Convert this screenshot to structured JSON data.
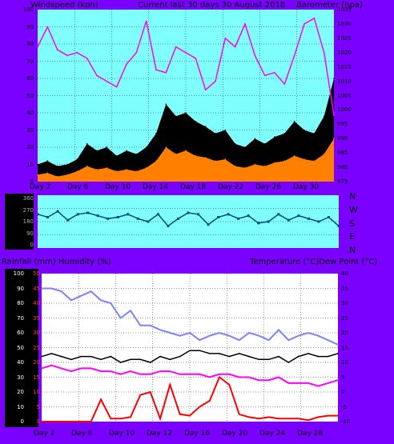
{
  "top": {
    "left_title": "Windspeed (kph)",
    "center_title": "Current last 30 days 30 August 2018",
    "right_title": "Barometer (hpa)",
    "left_ticks": [
      "100",
      "90",
      "80",
      "70",
      "60",
      "50",
      "40",
      "30",
      "20",
      "10",
      "0"
    ],
    "right_ticks": [
      "1035",
      "1030",
      "1025",
      "1020",
      "1015",
      "1010",
      "1005",
      "1000",
      "995",
      "990",
      "985",
      "980",
      "975"
    ],
    "x_ticks": [
      "Day 2",
      "Day 6",
      "Day 10",
      "Day 14",
      "Day 18",
      "Day 22",
      "Day 26",
      "Day 30"
    ]
  },
  "middle": {
    "left_ticks": [
      "360",
      "270",
      "180",
      "90",
      "0"
    ],
    "directions": [
      "N",
      "W",
      "S",
      "E",
      "N"
    ]
  },
  "bottom": {
    "left_title": "Rainfall (mm)  Humidity (%)",
    "right_title": "Temperature (°C)Dew Point (°C)",
    "left_ticks": [
      "100",
      "90",
      "80",
      "70",
      "60",
      "50",
      "40",
      "30",
      "20",
      "10",
      "0"
    ],
    "inner_ticks": [
      "50",
      "45",
      "40",
      "35",
      "30",
      "25",
      "20",
      "15",
      "10",
      "5",
      "0"
    ],
    "right_ticks": [
      "40",
      "35",
      "30",
      "25",
      "20",
      "15",
      "10",
      "5",
      "0",
      "-5",
      "-10"
    ],
    "x_ticks": [
      "Day 2",
      "Day 6",
      "Day 10",
      "Day 12",
      "Day 16",
      "Day 20",
      "Day 24",
      "Day 28"
    ]
  },
  "colors": {
    "frame": "#7a00ff",
    "top_plot_bg": "#80ffff",
    "bottom_plot_bg": "#ffffff",
    "gust": "#000000",
    "wind": "#ff8000",
    "barometer": "#ff00ff",
    "wind_dir": "#004a7f",
    "temperature": "#000000",
    "dewpoint": "#ff00ff",
    "humidity": "#8080ff",
    "rainfall": "#ff0000"
  },
  "chart_data": [
    {
      "type": "area",
      "title": "Current last 30 days 30 August 2018",
      "ylabel": "Windspeed (kph)",
      "y2label": "Barometer (hpa)",
      "ylim": [
        0,
        100
      ],
      "y2lim": [
        975,
        1035
      ],
      "x": [
        1,
        2,
        3,
        4,
        5,
        6,
        7,
        8,
        9,
        10,
        11,
        12,
        13,
        14,
        15,
        16,
        17,
        18,
        19,
        20,
        21,
        22,
        23,
        24,
        25,
        26,
        27,
        28,
        29,
        30,
        31
      ],
      "series": [
        {
          "values": [
            10,
            12,
            9,
            10,
            13,
            22,
            18,
            20,
            15,
            18,
            16,
            20,
            28,
            45,
            38,
            40,
            35,
            32,
            28,
            30,
            22,
            20,
            25,
            22,
            26,
            28,
            35,
            30,
            28,
            38,
            60
          ]
        },
        {
          "values": [
            4,
            5,
            3,
            4,
            6,
            9,
            7,
            8,
            6,
            7,
            6,
            8,
            12,
            20,
            16,
            18,
            15,
            14,
            12,
            13,
            9,
            8,
            10,
            9,
            11,
            12,
            15,
            13,
            12,
            16,
            25
          ]
        },
        {
          "values": [
            1022,
            1029,
            1021,
            1019,
            1020,
            1018,
            1012,
            1010,
            1008,
            1016,
            1020,
            1031,
            1014,
            1013,
            1022,
            1020,
            1018,
            1007,
            1010,
            1025,
            1022,
            1030,
            1019,
            1012,
            1013,
            1009,
            1019,
            1030,
            1032,
            1020,
            998
          ]
        }
      ]
    },
    {
      "type": "scatter",
      "x": [
        1,
        2,
        3,
        4,
        5,
        6,
        7,
        8,
        9,
        10,
        11,
        12,
        13,
        14,
        15,
        16,
        17,
        18,
        19,
        20,
        21,
        22,
        23,
        24,
        25,
        26,
        27,
        28,
        29,
        30,
        31
      ],
      "ylim": [
        0,
        360
      ],
      "series": [
        {
          "values": [
            230,
            210,
            250,
            190,
            230,
            240,
            220,
            200,
            210,
            230,
            200,
            180,
            230,
            150,
            200,
            240,
            230,
            160,
            210,
            230,
            200,
            220,
            170,
            180,
            230,
            190,
            220,
            200,
            180,
            210,
            150
          ]
        }
      ]
    },
    {
      "type": "line",
      "ylabel": "Rainfall (mm)  Humidity (%)",
      "y2label": "Temperature (°C)Dew Point (°C)",
      "ylim": [
        0,
        100
      ],
      "y2lim": [
        -10,
        40
      ],
      "x": [
        1,
        2,
        3,
        4,
        5,
        6,
        7,
        8,
        9,
        10,
        11,
        12,
        13,
        14,
        15,
        16,
        17,
        18,
        19,
        20,
        21,
        22,
        23,
        24,
        25,
        26,
        27,
        28,
        29,
        30,
        31
      ],
      "series": [
        {
          "values": [
            12,
            13,
            12,
            11,
            12,
            12,
            11,
            12,
            10,
            11,
            11,
            10,
            12,
            11,
            12,
            14,
            14,
            13,
            13,
            12,
            13,
            12,
            11,
            11,
            12,
            10,
            12,
            13,
            12,
            12,
            13
          ]
        },
        {
          "values": [
            8,
            9,
            8,
            7,
            8,
            8,
            7,
            7,
            6,
            7,
            6,
            6,
            7,
            7,
            6,
            6,
            6,
            5,
            6,
            6,
            5,
            5,
            4,
            4,
            5,
            3,
            3,
            3,
            2,
            3,
            4
          ]
        },
        {
          "values": [
            90,
            90,
            88,
            82,
            85,
            88,
            82,
            80,
            70,
            75,
            65,
            65,
            62,
            60,
            58,
            60,
            55,
            58,
            60,
            58,
            55,
            60,
            58,
            55,
            62,
            55,
            58,
            60,
            58,
            55,
            52
          ]
        },
        {
          "values": [
            0,
            0,
            0,
            0,
            0,
            0,
            15,
            2,
            2,
            3,
            18,
            20,
            2,
            25,
            5,
            4,
            10,
            14,
            30,
            25,
            5,
            3,
            2,
            3,
            2,
            2,
            2,
            1,
            3,
            4,
            4
          ]
        }
      ]
    }
  ]
}
